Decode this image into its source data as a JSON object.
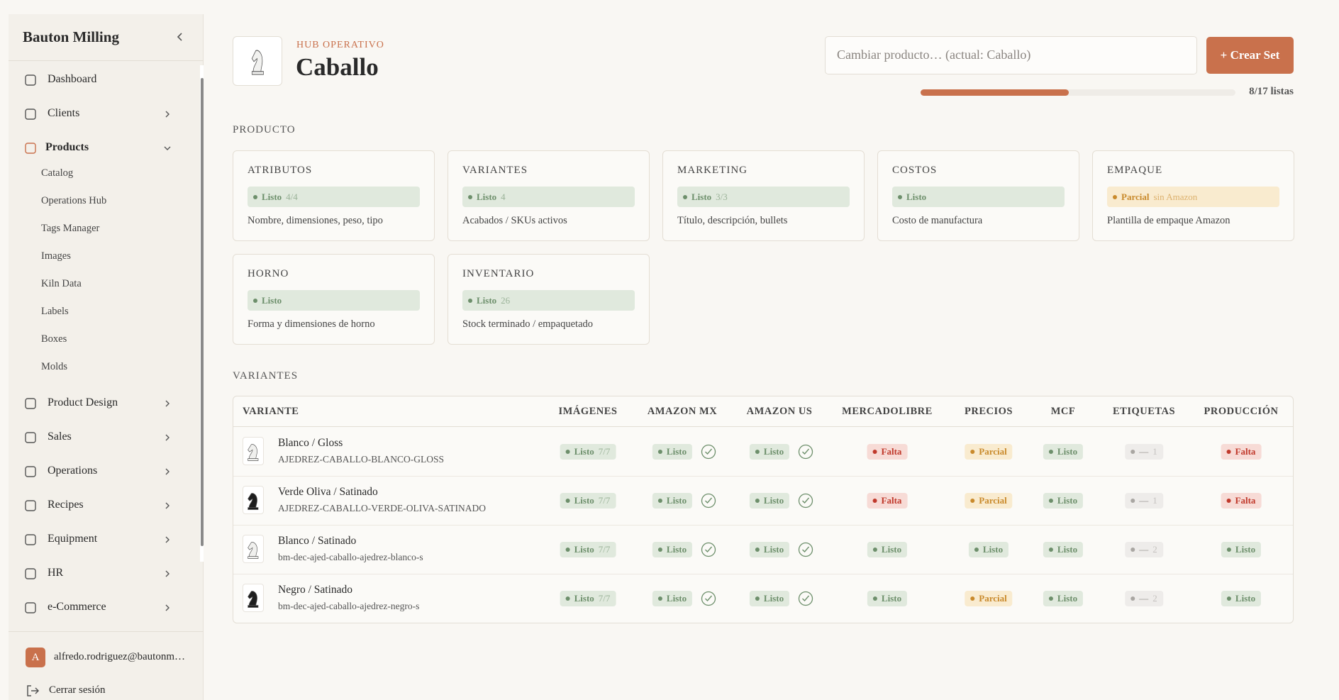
{
  "sidebar": {
    "brand": "Bauton Milling",
    "nav": [
      {
        "label": "Dashboard",
        "submenu": false
      },
      {
        "label": "Clients",
        "submenu": true
      },
      {
        "label": "Products",
        "submenu": true,
        "active": true,
        "children": [
          "Catalog",
          "Operations Hub",
          "Tags Manager",
          "Images",
          "Kiln Data",
          "Labels",
          "Boxes",
          "Molds"
        ]
      },
      {
        "label": "Product Design",
        "submenu": true
      },
      {
        "label": "Sales",
        "submenu": true
      },
      {
        "label": "Operations",
        "submenu": true
      },
      {
        "label": "Recipes",
        "submenu": true
      },
      {
        "label": "Equipment",
        "submenu": true
      },
      {
        "label": "HR",
        "submenu": true
      },
      {
        "label": "e-Commerce",
        "submenu": true
      }
    ],
    "user_initial": "A",
    "user": "alfredo.rodriguez@bautonm…",
    "logout": "Cerrar sesión"
  },
  "header": {
    "eyebrow": "HUB OPERATIVO",
    "title": "Caballo",
    "search_placeholder": "Cambiar producto… (actual: Caballo)",
    "button": "+ Crear Set",
    "progress": {
      "done": 8,
      "total": 17,
      "label": "8/17 listas"
    }
  },
  "product": {
    "heading": "PRODUCTO",
    "cards": [
      {
        "title": "ATRIBUTOS",
        "status": "Listo",
        "extra": "4/4",
        "tone": "green",
        "detail": "Nombre, dimensiones, peso, tipo"
      },
      {
        "title": "VARIANTES",
        "status": "Listo",
        "extra": "4",
        "tone": "green",
        "detail": "Acabados / SKUs activos"
      },
      {
        "title": "MARKETING",
        "status": "Listo",
        "extra": "3/3",
        "tone": "green",
        "detail": "Título, descripción, bullets"
      },
      {
        "title": "COSTOS",
        "status": "Listo",
        "tone": "green",
        "detail": "Costo de manufactura"
      },
      {
        "title": "EMPAQUE",
        "status": "Parcial",
        "extra": "sin Amazon",
        "tone": "amber",
        "detail": "Plantilla de empaque Amazon"
      },
      {
        "title": "HORNO",
        "status": "Listo",
        "tone": "green",
        "detail": "Forma y dimensiones de horno"
      },
      {
        "title": "INVENTARIO",
        "status": "Listo",
        "extra": "26",
        "tone": "green",
        "detail": "Stock terminado / empaquetado"
      }
    ]
  },
  "variants": {
    "heading": "VARIANTES",
    "columns": [
      "VARIANTE",
      "IMÁGENES",
      "AMAZON MX",
      "AMAZON US",
      "MERCADOLIBRE",
      "PRECIOS",
      "MCF",
      "ETIQUETAS",
      "PRODUCCIÓN"
    ],
    "rows": [
      {
        "name": "Blanco / Gloss",
        "sku": "AJEDREZ-CABALLO-BLANCO-GLOSS",
        "piece": "white",
        "cells": [
          {
            "status": "Listo",
            "extra": "7/7",
            "tone": "green"
          },
          {
            "status": "Listo",
            "tone": "green",
            "check": true
          },
          {
            "status": "Listo",
            "tone": "green",
            "check": true
          },
          {
            "status": "Falta",
            "tone": "red"
          },
          {
            "status": "Parcial",
            "tone": "amber"
          },
          {
            "status": "Listo",
            "tone": "green"
          },
          {
            "status": "—",
            "extra": "1",
            "tone": "gray"
          },
          {
            "status": "Falta",
            "tone": "red"
          }
        ]
      },
      {
        "name": "Verde Oliva / Satinado",
        "sku": "AJEDREZ-CABALLO-VERDE-OLIVA-SATINADO",
        "piece": "black",
        "cells": [
          {
            "status": "Listo",
            "extra": "7/7",
            "tone": "green"
          },
          {
            "status": "Listo",
            "tone": "green",
            "check": true
          },
          {
            "status": "Listo",
            "tone": "green",
            "check": true
          },
          {
            "status": "Falta",
            "tone": "red"
          },
          {
            "status": "Parcial",
            "tone": "amber"
          },
          {
            "status": "Listo",
            "tone": "green"
          },
          {
            "status": "—",
            "extra": "1",
            "tone": "gray"
          },
          {
            "status": "Falta",
            "tone": "red"
          }
        ]
      },
      {
        "name": "Blanco / Satinado",
        "sku": "bm-dec-ajed-caballo-ajedrez-blanco-s",
        "piece": "white",
        "cells": [
          {
            "status": "Listo",
            "extra": "7/7",
            "tone": "green"
          },
          {
            "status": "Listo",
            "tone": "green",
            "check": true
          },
          {
            "status": "Listo",
            "tone": "green",
            "check": true
          },
          {
            "status": "Listo",
            "tone": "green"
          },
          {
            "status": "Listo",
            "tone": "green"
          },
          {
            "status": "Listo",
            "tone": "green"
          },
          {
            "status": "—",
            "extra": "2",
            "tone": "gray"
          },
          {
            "status": "Listo",
            "tone": "green"
          }
        ]
      },
      {
        "name": "Negro / Satinado",
        "sku": "bm-dec-ajed-caballo-ajedrez-negro-s",
        "piece": "black",
        "cells": [
          {
            "status": "Listo",
            "extra": "7/7",
            "tone": "green"
          },
          {
            "status": "Listo",
            "tone": "green",
            "check": true
          },
          {
            "status": "Listo",
            "tone": "green",
            "check": true
          },
          {
            "status": "Listo",
            "tone": "green"
          },
          {
            "status": "Parcial",
            "tone": "amber"
          },
          {
            "status": "Listo",
            "tone": "green"
          },
          {
            "status": "—",
            "extra": "2",
            "tone": "gray"
          },
          {
            "status": "Listo",
            "tone": "green"
          }
        ]
      }
    ]
  }
}
